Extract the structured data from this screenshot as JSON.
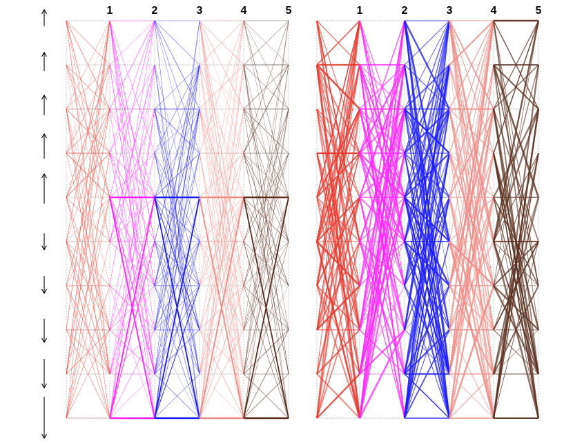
{
  "diagram": {
    "left_panel": {
      "axis_labels": [
        "1",
        "2",
        "3",
        "4",
        "5"
      ],
      "highlighted_paths": true
    },
    "right_panel": {
      "axis_labels": [
        "1",
        "2",
        "3",
        "4",
        "5"
      ],
      "highlighted_paths": false
    },
    "segment_colors": [
      "#e8382b",
      "#ff22ff",
      "#1a1aff",
      "#f08a84",
      "#5a2e1e"
    ],
    "left_arrows": [
      {
        "direction": "up"
      },
      {
        "direction": "up"
      },
      {
        "direction": "up"
      },
      {
        "direction": "up"
      },
      {
        "direction": "up"
      },
      {
        "direction": "down"
      },
      {
        "direction": "down"
      },
      {
        "direction": "down"
      },
      {
        "direction": "down"
      },
      {
        "direction": "down"
      }
    ]
  }
}
